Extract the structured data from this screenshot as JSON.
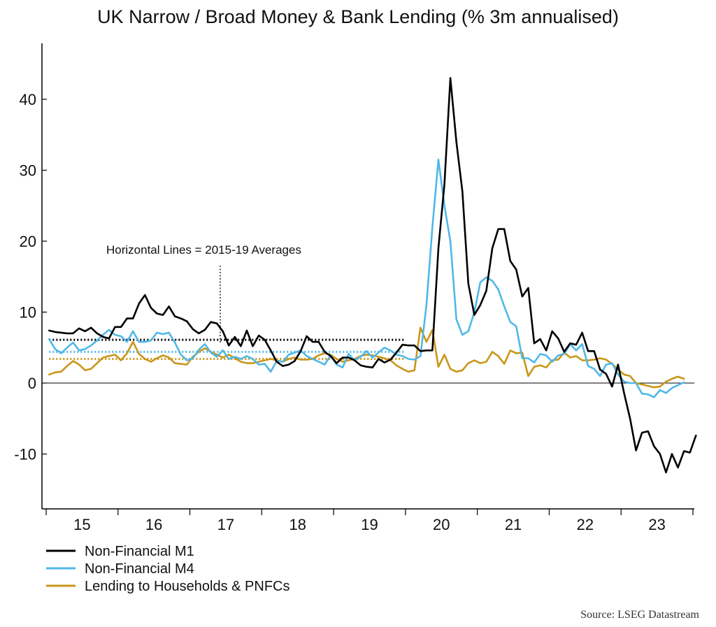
{
  "chart_data": {
    "type": "line",
    "title": "UK Narrow / Broad Money & Bank Lending (% 3m annualised)",
    "source": "Source: LSEG Datastream",
    "annotation": "Horizontal Lines = 2015-19 Averages",
    "x_tick_labels": [
      "15",
      "16",
      "17",
      "18",
      "19",
      "20",
      "21",
      "22",
      "23"
    ],
    "y_ticks": [
      -10,
      0,
      10,
      20,
      30,
      40
    ],
    "ylim": [
      -17,
      48
    ],
    "x_range": [
      "2015-01",
      "2023-12"
    ],
    "x_start_date": "2015-01",
    "legend_position": "bottom-left",
    "grid": false,
    "series": [
      {
        "name": "Non-Financial M1",
        "color": "#000000",
        "average": 6.1,
        "values": [
          7.4,
          7.2,
          7.1,
          7.0,
          7.0,
          7.7,
          7.3,
          7.8,
          7.0,
          6.5,
          6.3,
          7.9,
          7.9,
          9.1,
          9.1,
          11.2,
          12.4,
          10.6,
          9.8,
          9.6,
          10.8,
          9.4,
          9.1,
          8.7,
          7.6,
          7.0,
          7.5,
          8.6,
          8.4,
          7.3,
          5.3,
          6.5,
          5.2,
          7.4,
          5.2,
          6.7,
          6.1,
          4.6,
          3.0,
          2.4,
          2.6,
          3.1,
          4.5,
          6.6,
          5.8,
          5.8,
          4.4,
          3.8,
          2.8,
          3.6,
          3.6,
          3.2,
          2.5,
          2.3,
          2.2,
          3.4,
          2.9,
          3.3,
          4.3,
          5.4,
          5.3,
          5.3,
          4.5,
          4.6,
          4.6,
          19.0,
          28.0,
          43.0,
          34.0,
          27.0,
          14.0,
          9.6,
          11.0,
          13.0,
          19.0,
          21.7,
          21.7,
          17.2,
          16.0,
          12.2,
          13.4,
          5.6,
          6.2,
          4.6,
          7.3,
          6.3,
          4.4,
          5.6,
          5.4,
          7.1,
          4.5,
          4.5,
          1.9,
          1.3,
          -0.5,
          2.6,
          -1.4,
          -5.0,
          -9.5,
          -7.0,
          -6.8,
          -8.9,
          -10.0,
          -12.6,
          -10.0,
          -11.9,
          -9.6,
          -9.8,
          -7.4
        ]
      },
      {
        "name": "Non-Financial M4",
        "color": "#4fb8e8",
        "average": 4.4,
        "values": [
          6.2,
          4.8,
          4.2,
          5.0,
          5.7,
          4.6,
          4.8,
          5.3,
          6.0,
          6.8,
          7.5,
          6.8,
          6.6,
          5.8,
          7.3,
          5.8,
          5.8,
          6.0,
          7.1,
          6.9,
          7.1,
          5.7,
          4.0,
          3.2,
          3.5,
          4.7,
          5.5,
          4.3,
          3.7,
          4.6,
          3.4,
          3.7,
          3.4,
          3.8,
          3.4,
          2.6,
          2.7,
          1.6,
          3.1,
          3.0,
          4.0,
          4.3,
          4.6,
          3.8,
          3.4,
          3.0,
          2.6,
          3.9,
          2.6,
          2.2,
          4.1,
          3.2,
          3.7,
          4.5,
          3.6,
          4.3,
          5.0,
          4.6,
          4.0,
          3.8,
          3.4,
          3.3,
          3.8,
          11.0,
          22.0,
          31.5,
          25.0,
          20.0,
          9.0,
          6.8,
          7.3,
          10.0,
          14.2,
          14.9,
          14.4,
          13.2,
          10.8,
          8.6,
          8.0,
          3.5,
          3.5,
          2.9,
          4.1,
          3.9,
          3.0,
          3.9,
          4.1,
          5.5,
          4.6,
          5.5,
          2.4,
          2.0,
          1.0,
          2.6,
          2.8,
          1.2,
          0.2,
          0.0,
          0.0,
          -1.5,
          -1.6,
          -2.0,
          -1.0,
          -1.4,
          -0.7,
          -0.3,
          0.1
        ]
      },
      {
        "name": "Lending to Households & PNFCs",
        "color": "#c9961a",
        "average": 3.4,
        "values": [
          1.2,
          1.5,
          1.6,
          2.4,
          3.1,
          2.6,
          1.8,
          2.0,
          2.8,
          3.6,
          3.8,
          4.0,
          3.2,
          4.2,
          5.8,
          4.1,
          3.4,
          3.0,
          3.5,
          3.9,
          3.6,
          2.8,
          2.7,
          2.6,
          3.7,
          4.4,
          4.9,
          4.4,
          4.0,
          3.6,
          4.0,
          3.5,
          3.0,
          2.8,
          2.8,
          3.0,
          3.2,
          3.4,
          3.2,
          3.0,
          3.4,
          3.6,
          3.3,
          3.3,
          3.4,
          3.9,
          4.2,
          4.0,
          3.4,
          3.0,
          3.2,
          3.4,
          3.8,
          4.0,
          3.9,
          3.7,
          3.5,
          3.2,
          2.5,
          2.0,
          1.6,
          1.8,
          7.8,
          5.8,
          7.5,
          2.3,
          4.0,
          2.0,
          1.6,
          1.8,
          2.8,
          3.2,
          2.8,
          3.0,
          4.4,
          3.8,
          2.7,
          4.6,
          4.2,
          4.3,
          1.0,
          2.3,
          2.5,
          2.2,
          3.2,
          3.3,
          4.3,
          3.6,
          3.8,
          3.2,
          3.2,
          3.3,
          3.5,
          3.3,
          2.7,
          1.9,
          1.2,
          1.0,
          0.0,
          -0.2,
          -0.4,
          -0.6,
          -0.5,
          0.2,
          0.6,
          0.9,
          0.6
        ]
      }
    ]
  }
}
